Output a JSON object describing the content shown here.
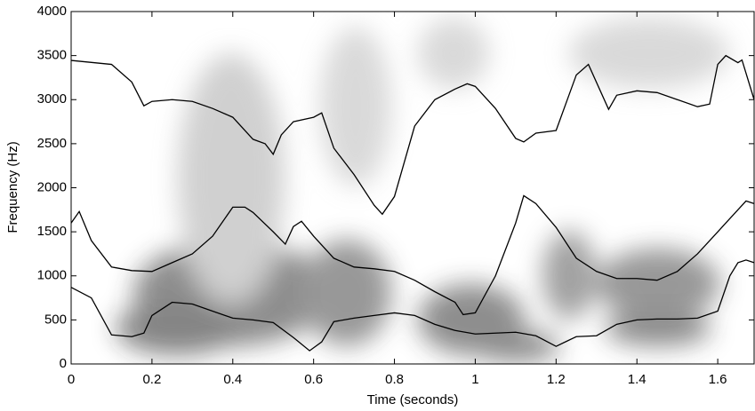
{
  "chart_data": {
    "type": "line",
    "xlabel": "Time (seconds)",
    "ylabel": "Frequency (Hz)",
    "xlim": [
      0,
      1.69
    ],
    "ylim": [
      0,
      4000
    ],
    "xticks": [
      0,
      0.2,
      0.4,
      0.6,
      0.8,
      1,
      1.2,
      1.4,
      1.6
    ],
    "yticks": [
      0,
      500,
      1000,
      1500,
      2000,
      2500,
      3000,
      3500,
      4000
    ],
    "series": [
      {
        "color": "#000000",
        "x": [
          0,
          0.1,
          0.15,
          0.18,
          0.2,
          0.25,
          0.3,
          0.35,
          0.4,
          0.45,
          0.48,
          0.5,
          0.52,
          0.55,
          0.6,
          0.62,
          0.65,
          0.7,
          0.75,
          0.77,
          0.8,
          0.85,
          0.9,
          0.95,
          0.98,
          1,
          1.05,
          1.1,
          1.12,
          1.15,
          1.2,
          1.25,
          1.28,
          1.33,
          1.35,
          1.4,
          1.45,
          1.5,
          1.55,
          1.58,
          1.6,
          1.62,
          1.65,
          1.66,
          1.69
        ],
        "values": [
          3445,
          3400,
          3200,
          2930,
          2980,
          3000,
          2980,
          2900,
          2800,
          2550,
          2500,
          2380,
          2600,
          2750,
          2800,
          2850,
          2450,
          2150,
          1800,
          1700,
          1900,
          2700,
          3000,
          3120,
          3180,
          3150,
          2900,
          2560,
          2520,
          2620,
          2650,
          3280,
          3400,
          2890,
          3050,
          3100,
          3080,
          3000,
          2920,
          2950,
          3400,
          3500,
          3420,
          3450,
          3000
        ]
      },
      {
        "color": "#000000",
        "x": [
          0,
          0.02,
          0.05,
          0.1,
          0.15,
          0.2,
          0.25,
          0.3,
          0.35,
          0.4,
          0.43,
          0.45,
          0.5,
          0.53,
          0.55,
          0.57,
          0.6,
          0.65,
          0.7,
          0.75,
          0.8,
          0.85,
          0.9,
          0.95,
          0.97,
          1,
          1.05,
          1.1,
          1.12,
          1.15,
          1.2,
          1.25,
          1.3,
          1.35,
          1.4,
          1.45,
          1.5,
          1.55,
          1.6,
          1.65,
          1.67,
          1.69
        ],
        "values": [
          1600,
          1730,
          1400,
          1100,
          1060,
          1050,
          1150,
          1250,
          1450,
          1780,
          1780,
          1720,
          1500,
          1360,
          1560,
          1620,
          1450,
          1200,
          1100,
          1080,
          1050,
          950,
          820,
          700,
          560,
          580,
          1000,
          1600,
          1910,
          1820,
          1550,
          1200,
          1050,
          970,
          970,
          950,
          1050,
          1250,
          1500,
          1750,
          1850,
          1820
        ]
      },
      {
        "color": "#000000",
        "x": [
          0,
          0.05,
          0.1,
          0.15,
          0.18,
          0.2,
          0.25,
          0.3,
          0.35,
          0.4,
          0.45,
          0.5,
          0.55,
          0.59,
          0.62,
          0.65,
          0.7,
          0.75,
          0.8,
          0.85,
          0.9,
          0.95,
          1,
          1.05,
          1.1,
          1.15,
          1.2,
          1.25,
          1.3,
          1.35,
          1.4,
          1.45,
          1.5,
          1.55,
          1.6,
          1.63,
          1.65,
          1.67,
          1.69
        ],
        "values": [
          870,
          750,
          330,
          310,
          350,
          550,
          700,
          680,
          600,
          520,
          500,
          470,
          300,
          150,
          250,
          480,
          520,
          550,
          580,
          550,
          450,
          380,
          340,
          350,
          360,
          320,
          200,
          310,
          320,
          450,
          500,
          510,
          510,
          520,
          600,
          1000,
          1150,
          1180,
          1150
        ]
      }
    ]
  }
}
